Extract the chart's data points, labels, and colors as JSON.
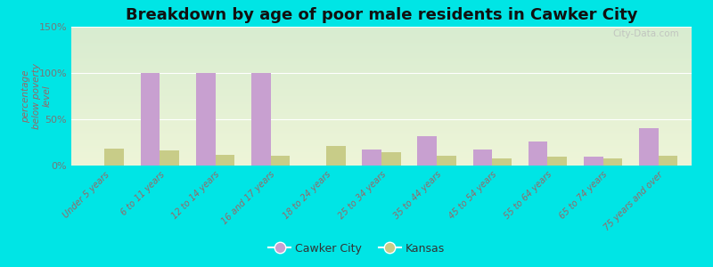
{
  "title": "Breakdown by age of poor male residents in Cawker City",
  "ylabel": "percentage\nbelow poverty\nlevel",
  "categories": [
    "Under 5 years",
    "6 to 11 years",
    "12 to 14 years",
    "16 and 17 years",
    "18 to 24 years",
    "25 to 34 years",
    "35 to 44 years",
    "45 to 54 years",
    "55 to 64 years",
    "65 to 74 years",
    "75 years and over"
  ],
  "cawker_city": [
    0,
    100,
    100,
    100,
    0,
    17,
    32,
    17,
    26,
    10,
    40
  ],
  "kansas": [
    18,
    16,
    12,
    11,
    21,
    14,
    11,
    8,
    10,
    8,
    11
  ],
  "cawker_color": "#c8a0d0",
  "kansas_color": "#c8cc88",
  "outer_bg": "#00e5e5",
  "plot_bg_top": "#d8ecd0",
  "plot_bg_bottom": "#eef5d8",
  "ylim": [
    0,
    150
  ],
  "yticks": [
    0,
    50,
    100,
    150
  ],
  "ytick_labels": [
    "0%",
    "50%",
    "100%",
    "150%"
  ],
  "bar_width": 0.35,
  "title_fontsize": 13,
  "legend_labels": [
    "Cawker City",
    "Kansas"
  ],
  "tick_color": "#996666",
  "ylabel_color": "#996666"
}
